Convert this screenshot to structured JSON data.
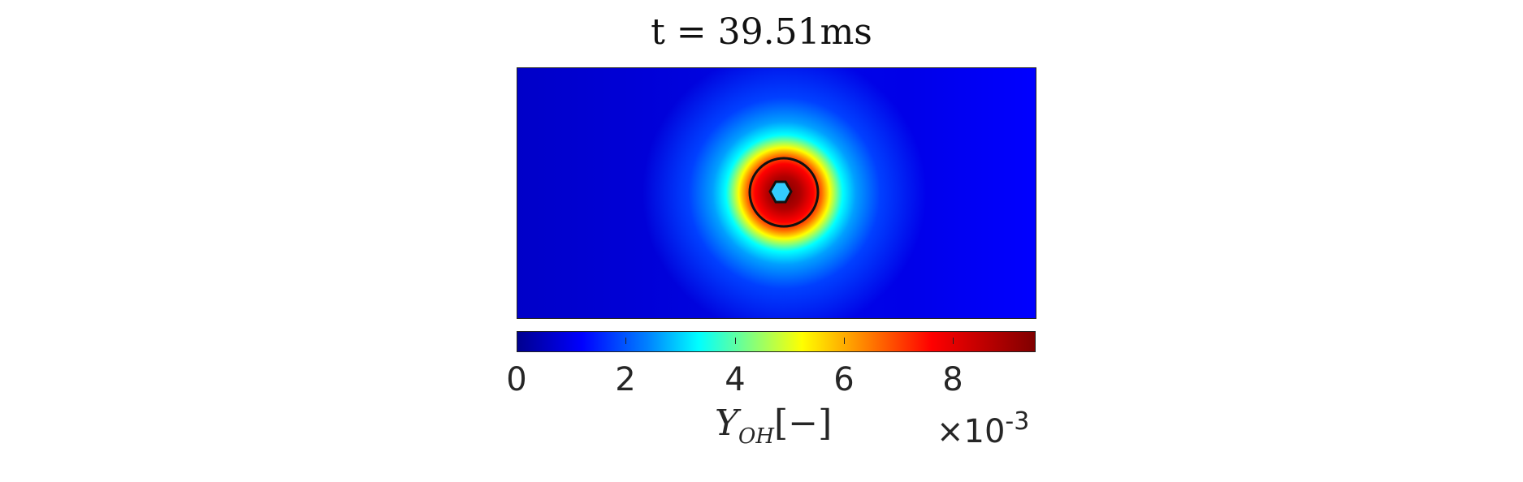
{
  "chart_data": {
    "type": "heatmap",
    "title": "t = 39.51ms",
    "colorbar": {
      "label_base": "Y",
      "label_sub": "OH",
      "label_unit": "[−]",
      "exponent_times": "×",
      "exponent_base": "10",
      "exponent_power": "-3",
      "range": [
        0,
        9.5
      ],
      "ticks": [
        0,
        2,
        4,
        6,
        8
      ],
      "tick_labels": [
        "0",
        "2",
        "4",
        "6",
        "8"
      ],
      "colormap": "jet"
    },
    "field": {
      "description_values": "OH mass fraction peaks in a ring around a small central kernel",
      "peak_value": 9.5,
      "contours": [
        "outer ring",
        "inner kernel"
      ]
    }
  }
}
